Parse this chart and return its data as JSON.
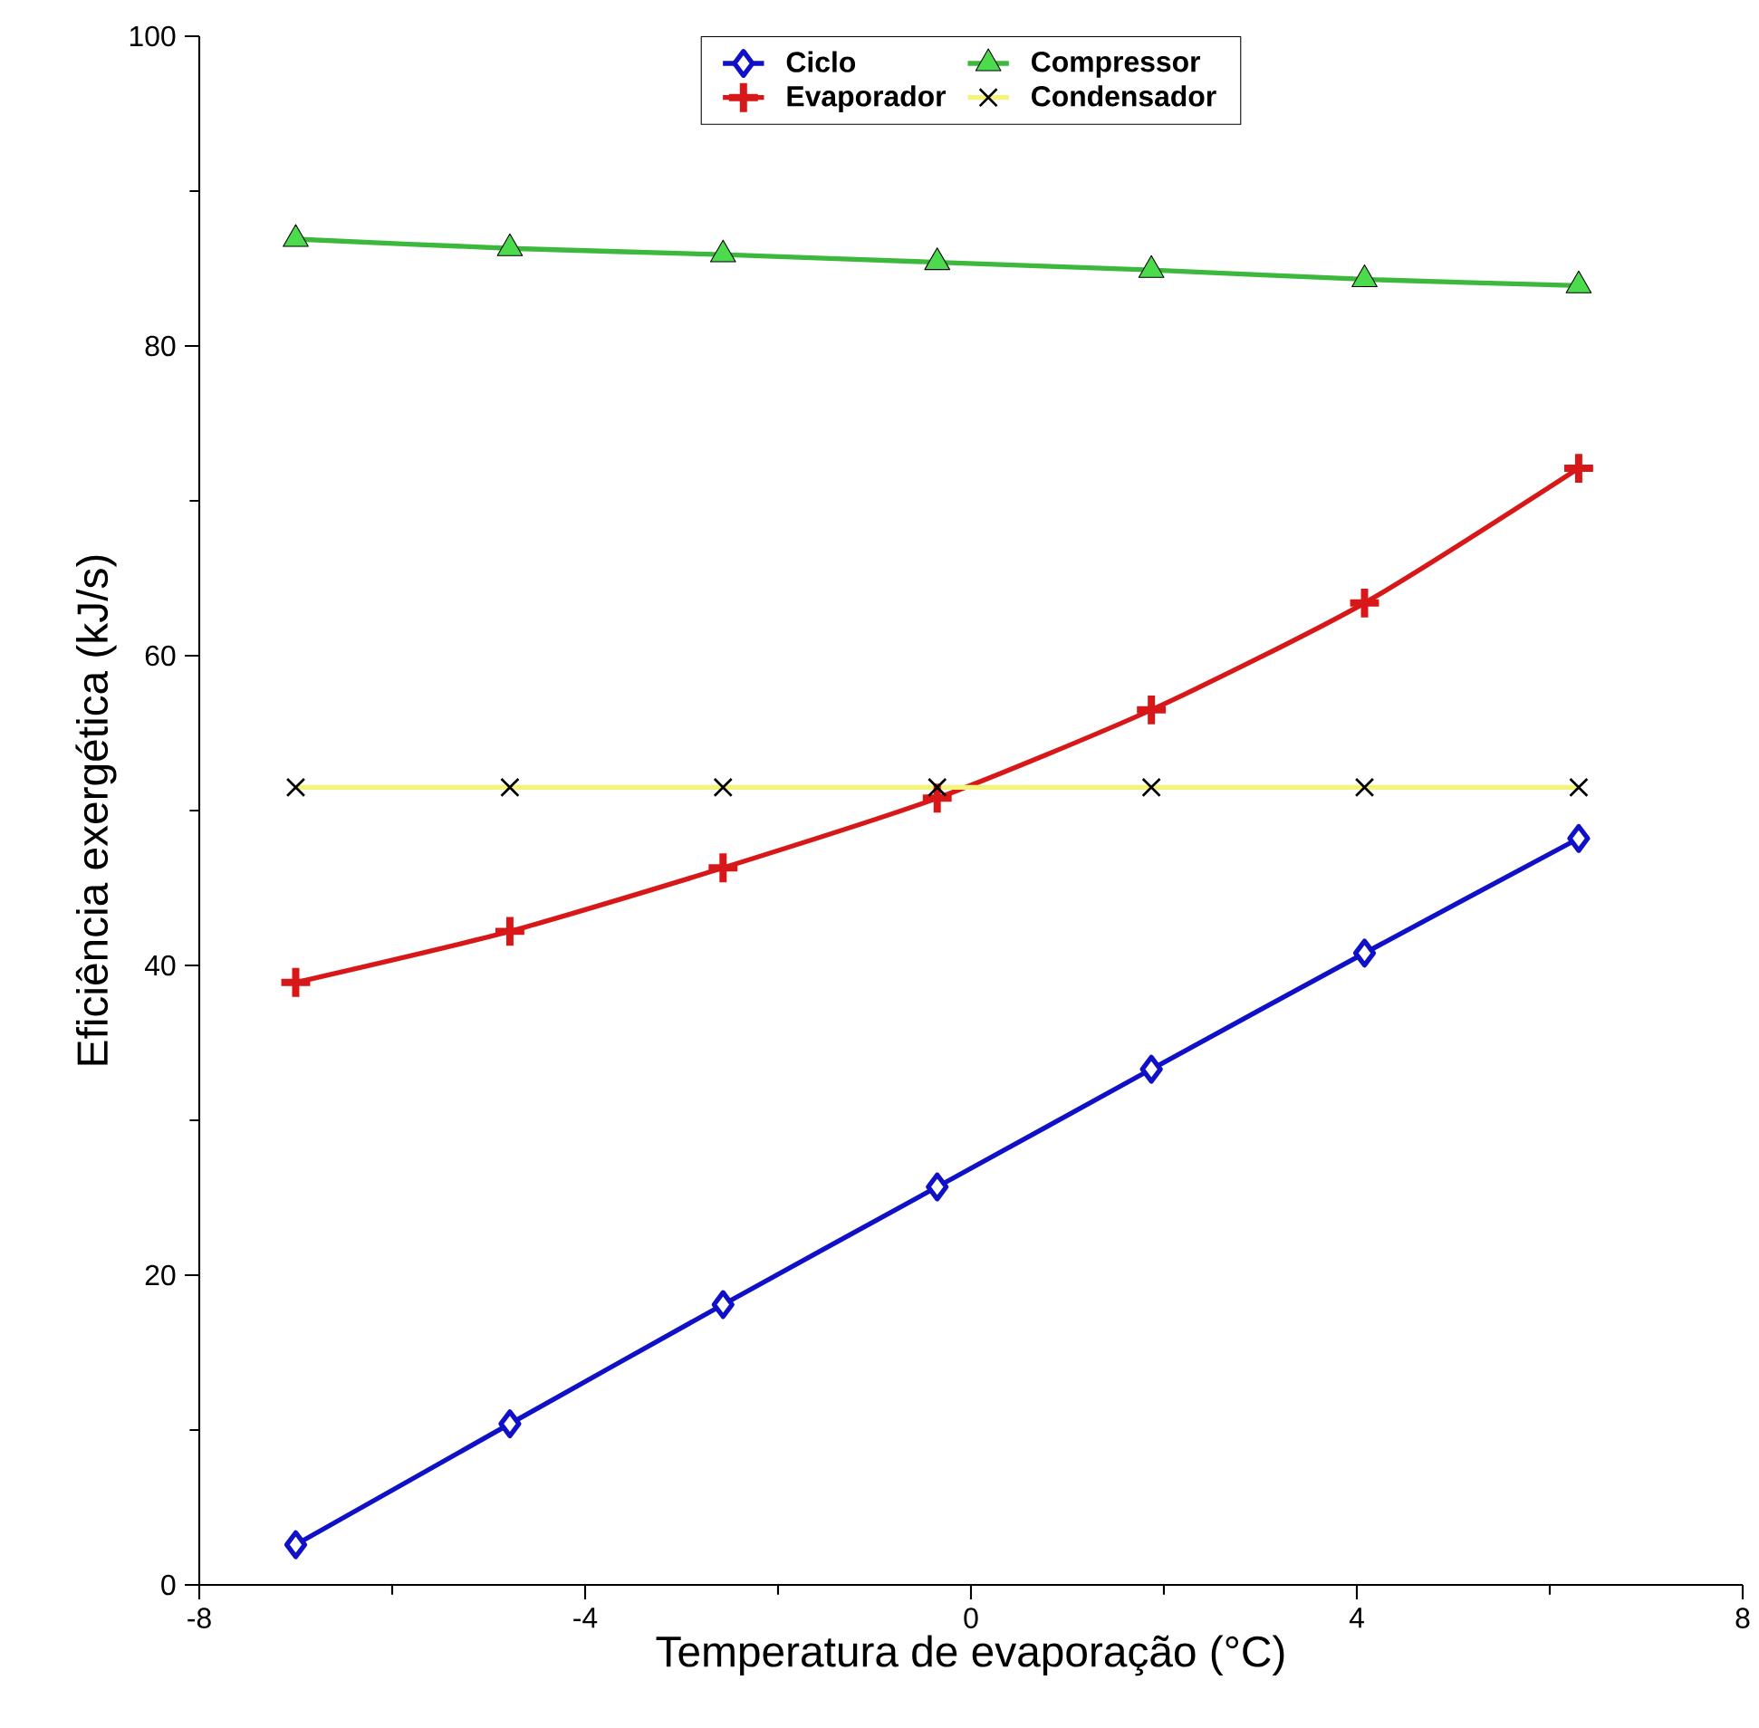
{
  "chart_data": {
    "type": "line",
    "xlabel": "Temperatura de evaporação (°C)",
    "ylabel": "Eficiência exergética (kJ/s)",
    "x": [
      -7,
      -4.78,
      -2.57,
      -0.35,
      1.87,
      4.08,
      6.3
    ],
    "series": [
      {
        "name": "Ciclo",
        "color": "#1010c8",
        "marker": "diamond",
        "values": [
          2.6,
          10.4,
          18.1,
          25.7,
          33.3,
          40.8,
          48.2
        ]
      },
      {
        "name": "Evaporador",
        "color": "#d81818",
        "marker": "plus",
        "values": [
          38.9,
          42.2,
          46.3,
          50.8,
          56.5,
          63.4,
          72.1
        ]
      },
      {
        "name": "Compressor",
        "color": "#3cb83c",
        "marker": "triangle",
        "values": [
          86.9,
          86.3,
          85.9,
          85.4,
          84.9,
          84.3,
          83.9
        ]
      },
      {
        "name": "Condensador",
        "color": "#f4f47a",
        "marker": "cross",
        "values": [
          51.5,
          51.5,
          51.5,
          51.5,
          51.5,
          51.5,
          51.5
        ]
      }
    ],
    "xlim": [
      -8,
      8
    ],
    "ylim": [
      0,
      100
    ],
    "xticks": [
      -8,
      -4,
      0,
      4,
      8
    ],
    "yticks": [
      0,
      20,
      40,
      60,
      80,
      100
    ],
    "grid": false,
    "legend": "top",
    "line_style": "solid"
  }
}
